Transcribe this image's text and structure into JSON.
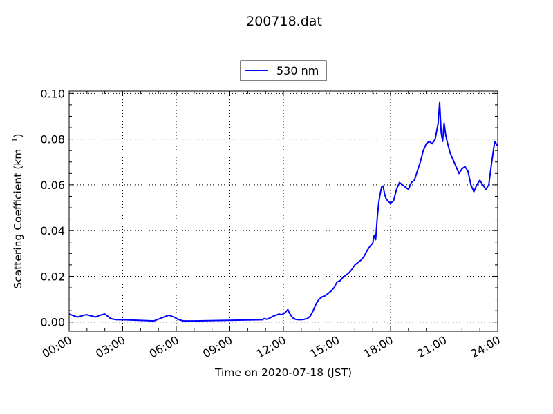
{
  "chart_data": {
    "type": "line",
    "title": "200718.dat",
    "xlabel": "Time on 2020-07-18 (JST)",
    "ylabel_main": "Scattering Coefficient (km",
    "ylabel_sup": "−1",
    "ylabel_end": ")",
    "xlim": [
      "00:00",
      "24:00"
    ],
    "ylim": [
      -0.004,
      0.101
    ],
    "x_tick_labels": [
      "00:00",
      "03:00",
      "06:00",
      "09:00",
      "12:00",
      "15:00",
      "18:00",
      "21:00",
      "24:00"
    ],
    "x_ticks_hours": [
      0,
      3,
      6,
      9,
      12,
      15,
      18,
      21,
      24
    ],
    "y_tick_labels": [
      "0.00",
      "0.02",
      "0.04",
      "0.06",
      "0.08",
      "0.10"
    ],
    "y_ticks": [
      0.0,
      0.02,
      0.04,
      0.06,
      0.08,
      0.1
    ],
    "grid": true,
    "legend_position": "top-center",
    "series": [
      {
        "name": "530 nm",
        "color": "#0000ff",
        "x": [
          "00:00",
          "00:10",
          "00:20",
          "00:30",
          "00:40",
          "00:50",
          "01:00",
          "01:10",
          "01:20",
          "01:30",
          "01:40",
          "01:50",
          "02:00",
          "02:10",
          "02:20",
          "02:30",
          "02:40",
          "02:50",
          "03:00",
          "04:45",
          "04:55",
          "05:05",
          "05:15",
          "05:25",
          "05:35",
          "05:45",
          "05:55",
          "06:05",
          "06:15",
          "06:25",
          "06:35",
          "06:50",
          "07:00",
          "10:50",
          "10:55",
          "11:05",
          "11:15",
          "11:25",
          "11:35",
          "11:45",
          "11:55",
          "12:05",
          "12:15",
          "12:20",
          "12:30",
          "12:40",
          "12:50",
          "13:00",
          "13:10",
          "13:20",
          "13:30",
          "13:40",
          "13:50",
          "14:00",
          "14:10",
          "14:20",
          "14:30",
          "14:40",
          "14:50",
          "15:00",
          "15:10",
          "15:20",
          "15:30",
          "15:40",
          "15:50",
          "16:00",
          "16:10",
          "16:20",
          "16:30",
          "16:40",
          "16:50",
          "17:00",
          "17:05",
          "17:10",
          "17:15",
          "17:20",
          "17:25",
          "17:30",
          "17:35",
          "17:40",
          "17:45",
          "17:50",
          "18:00",
          "18:10",
          "18:20",
          "18:30",
          "18:40",
          "18:50",
          "19:00",
          "19:10",
          "19:20",
          "19:30",
          "19:40",
          "19:50",
          "20:00",
          "20:10",
          "20:20",
          "20:30",
          "20:40",
          "20:45",
          "20:50",
          "20:55",
          "21:00",
          "21:05",
          "21:10",
          "21:20",
          "21:30",
          "21:40",
          "21:50",
          "22:00",
          "22:10",
          "22:20",
          "22:25",
          "22:30",
          "22:40",
          "22:50",
          "23:00",
          "23:10",
          "23:20",
          "23:30",
          "23:40",
          "23:50",
          "24:00"
        ],
        "y": [
          0.0035,
          0.003,
          0.0025,
          0.0022,
          0.0026,
          0.003,
          0.0032,
          0.0028,
          0.0025,
          0.0022,
          0.0028,
          0.0032,
          0.0035,
          0.0025,
          0.0015,
          0.0012,
          0.001,
          0.001,
          0.001,
          0.0005,
          0.001,
          0.0015,
          0.002,
          0.0025,
          0.003,
          0.0025,
          0.002,
          0.0012,
          0.0008,
          0.0005,
          0.0005,
          0.0005,
          0.0005,
          0.001,
          0.0015,
          0.0012,
          0.0018,
          0.0025,
          0.003,
          0.0035,
          0.0032,
          0.004,
          0.0055,
          0.004,
          0.002,
          0.0012,
          0.001,
          0.001,
          0.0012,
          0.0015,
          0.0025,
          0.005,
          0.008,
          0.01,
          0.011,
          0.0115,
          0.0125,
          0.0135,
          0.015,
          0.0175,
          0.018,
          0.0195,
          0.0205,
          0.0215,
          0.023,
          0.025,
          0.026,
          0.027,
          0.0285,
          0.031,
          0.033,
          0.0345,
          0.038,
          0.036,
          0.045,
          0.052,
          0.056,
          0.059,
          0.0595,
          0.056,
          0.054,
          0.053,
          0.052,
          0.053,
          0.058,
          0.061,
          0.06,
          0.059,
          0.058,
          0.061,
          0.062,
          0.066,
          0.07,
          0.075,
          0.078,
          0.079,
          0.078,
          0.08,
          0.087,
          0.096,
          0.083,
          0.079,
          0.087,
          0.082,
          0.079,
          0.074,
          0.071,
          0.068,
          0.065,
          0.067,
          0.068,
          0.066,
          0.063,
          0.06,
          0.057,
          0.06,
          0.062,
          0.06,
          0.058,
          0.06,
          0.07,
          0.079,
          0.077
        ]
      }
    ]
  }
}
